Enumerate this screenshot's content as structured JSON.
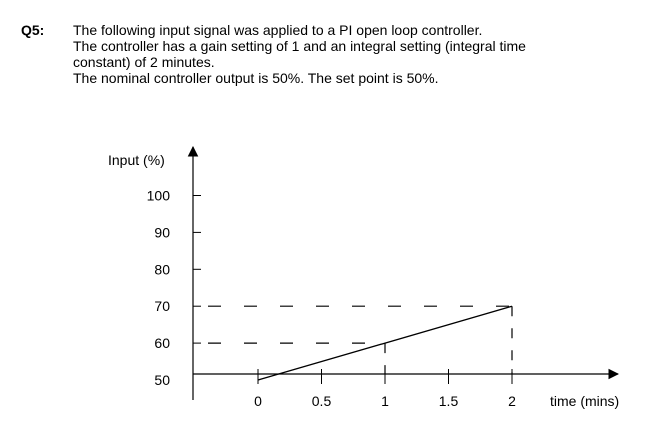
{
  "question": {
    "number": "Q5:",
    "lines": [
      "The following input signal was applied to a PI open loop controller.",
      "The controller has a gain setting of 1 and an integral setting (integral time",
      "constant) of 2 minutes.",
      "The nominal controller output is 50%. The set point is 50%."
    ]
  },
  "chart_data": {
    "type": "line",
    "ylabel": "Input (%)",
    "xlabel": "time (mins)",
    "y_ticks": [
      100,
      90,
      80,
      70,
      60,
      50
    ],
    "x_ticks": [
      "0",
      "0.5",
      "1",
      "1.5",
      "2"
    ],
    "series": [
      {
        "x": [
          0,
          2
        ],
        "y": [
          50,
          70
        ]
      }
    ],
    "guides": [
      {
        "y": 70,
        "x_end": 2
      },
      {
        "y": 60,
        "x_end": 1
      }
    ],
    "xlim": [
      -0.5,
      2.8
    ],
    "ylim": [
      50,
      100
    ]
  }
}
